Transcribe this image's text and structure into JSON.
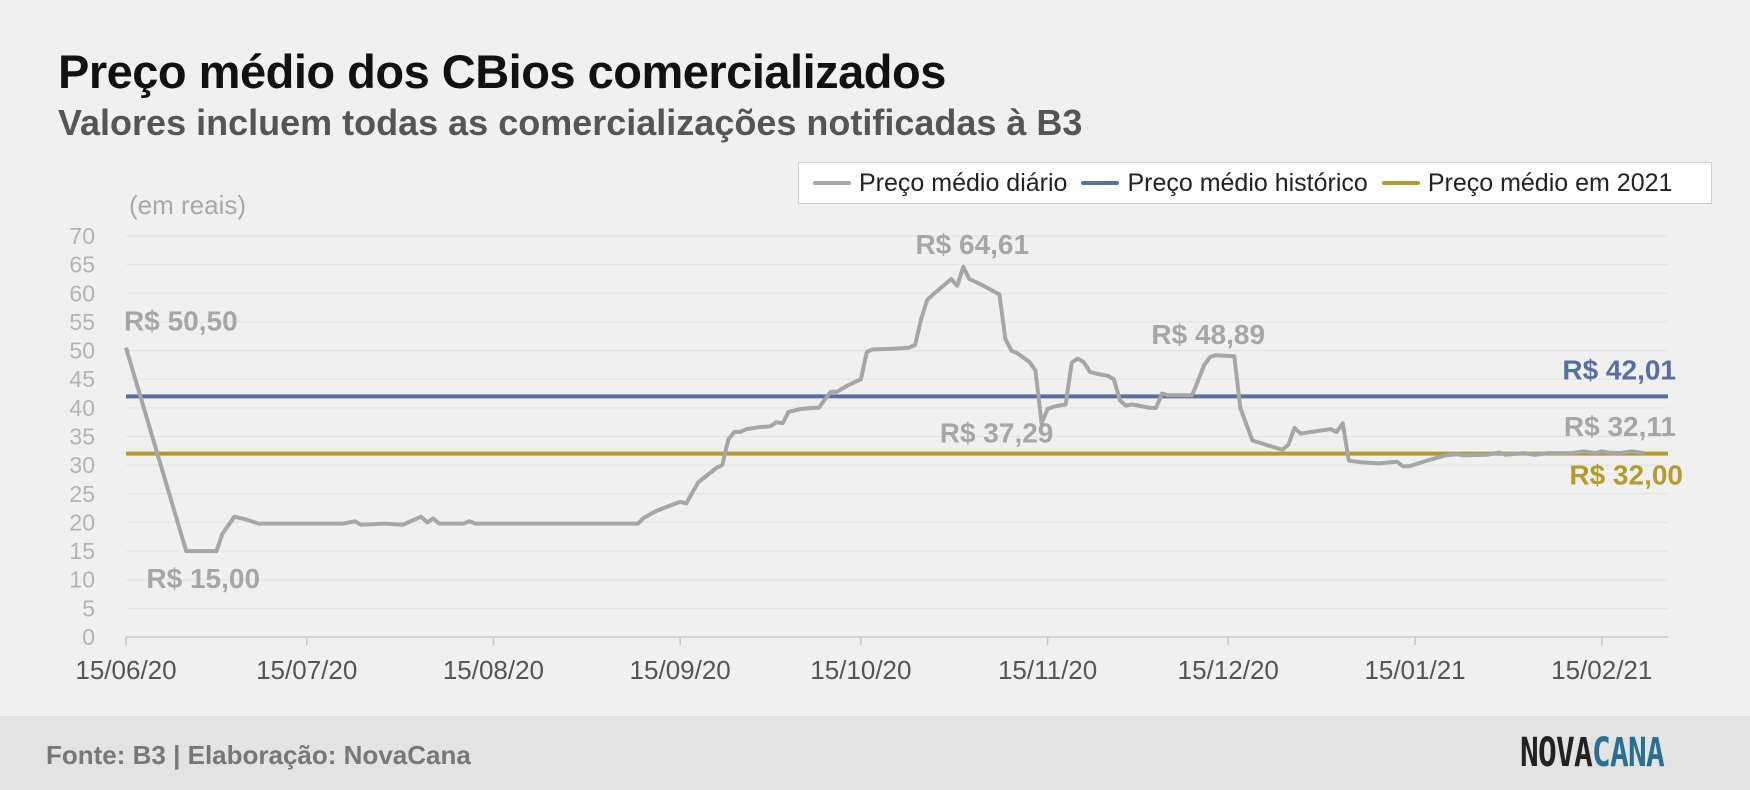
{
  "title": "Preço médio dos CBios comercializados",
  "subtitle": "Valores incluem todas as comercializações notificadas à B3",
  "footer": {
    "source": "Fonte: B3 | Elaboração: NovaCana",
    "logo_part1": "NOVA",
    "logo_part2": "CANA"
  },
  "colors": {
    "daily": "#a6a6a6",
    "historic": "#56709f",
    "year2021": "#b59b2c"
  },
  "chart_data": {
    "type": "line",
    "ylabel": "(em reais)",
    "ylim": [
      0,
      70
    ],
    "yticks": [
      "0",
      "5",
      "10",
      "15",
      "20",
      "25",
      "30",
      "35",
      "40",
      "45",
      "50",
      "55",
      "60",
      "65",
      "70"
    ],
    "xticks": [
      {
        "label": "15/06/20",
        "day": 0
      },
      {
        "label": "15/07/20",
        "day": 30
      },
      {
        "label": "15/08/20",
        "day": 61
      },
      {
        "label": "15/09/20",
        "day": 92
      },
      {
        "label": "15/10/20",
        "day": 122
      },
      {
        "label": "15/11/20",
        "day": 153
      },
      {
        "label": "15/12/20",
        "day": 183
      },
      {
        "label": "15/01/21",
        "day": 214
      },
      {
        "label": "15/02/21",
        "day": 245
      }
    ],
    "x_range": [
      0,
      256
    ],
    "legend": [
      "Preço médio diário",
      "Preço médio histórico",
      "Preço médio em 2021"
    ],
    "series": [
      {
        "name": "Preço médio diário",
        "points": [
          [
            0,
            50.5
          ],
          [
            10,
            15
          ],
          [
            12,
            15
          ],
          [
            15,
            15
          ],
          [
            16,
            18
          ],
          [
            18,
            21
          ],
          [
            20,
            20.5
          ],
          [
            22,
            19.8
          ],
          [
            28,
            19.8
          ],
          [
            36,
            19.8
          ],
          [
            38,
            20.2
          ],
          [
            39,
            19.6
          ],
          [
            43,
            19.8
          ],
          [
            46,
            19.6
          ],
          [
            49,
            21
          ],
          [
            50,
            20
          ],
          [
            51,
            20.7
          ],
          [
            52,
            19.8
          ],
          [
            56,
            19.8
          ],
          [
            57,
            20.2
          ],
          [
            58,
            19.8
          ],
          [
            66,
            19.8
          ],
          [
            80,
            19.8
          ],
          [
            85,
            19.8
          ],
          [
            86,
            20.8
          ],
          [
            88,
            22
          ],
          [
            90,
            22.8
          ],
          [
            92,
            23.6
          ],
          [
            93,
            23.3
          ],
          [
            95,
            27
          ],
          [
            98,
            29.5
          ],
          [
            99,
            30
          ],
          [
            100,
            34.5
          ],
          [
            101,
            35.8
          ],
          [
            102,
            35.8
          ],
          [
            103,
            36.3
          ],
          [
            105,
            36.6
          ],
          [
            107,
            36.8
          ],
          [
            108,
            37.5
          ],
          [
            109,
            37.3
          ],
          [
            110,
            39.3
          ],
          [
            112,
            39.8
          ],
          [
            114,
            40
          ],
          [
            115,
            40
          ],
          [
            117,
            42.8
          ],
          [
            118,
            42.8
          ],
          [
            120,
            44
          ],
          [
            122,
            45
          ],
          [
            123,
            49.8
          ],
          [
            124,
            50.2
          ],
          [
            127,
            50.3
          ],
          [
            130,
            50.5
          ],
          [
            131,
            51
          ],
          [
            132,
            55.5
          ],
          [
            133,
            58.8
          ],
          [
            134,
            59.8
          ],
          [
            135,
            60.7
          ],
          [
            137,
            62.5
          ],
          [
            138,
            61.3
          ],
          [
            139,
            64.61
          ],
          [
            140,
            62.5
          ],
          [
            142,
            61.5
          ],
          [
            145,
            59.8
          ],
          [
            146,
            52
          ],
          [
            147,
            50
          ],
          [
            148,
            49.5
          ],
          [
            150,
            48
          ],
          [
            151,
            46.5
          ],
          [
            152,
            37.29
          ],
          [
            153,
            39.8
          ],
          [
            154,
            40.2
          ],
          [
            156,
            40.6
          ],
          [
            157,
            47.9
          ],
          [
            158,
            48.6
          ],
          [
            159,
            48
          ],
          [
            160,
            46.3
          ],
          [
            161,
            46
          ],
          [
            163,
            45.6
          ],
          [
            164,
            45
          ],
          [
            165,
            41.3
          ],
          [
            166,
            40.4
          ],
          [
            167,
            40.6
          ],
          [
            170,
            40
          ],
          [
            171,
            40
          ],
          [
            172,
            42.5
          ],
          [
            173,
            42.2
          ],
          [
            177,
            42.2
          ],
          [
            178,
            44.8
          ],
          [
            179,
            47.5
          ],
          [
            180,
            48.89
          ],
          [
            181,
            49.2
          ],
          [
            184,
            49
          ],
          [
            185,
            40
          ],
          [
            187,
            34.3
          ],
          [
            190,
            33.3
          ],
          [
            192,
            32.7
          ],
          [
            193,
            33.6
          ],
          [
            194,
            36.5
          ],
          [
            195,
            35.5
          ],
          [
            198,
            36
          ],
          [
            200,
            36.3
          ],
          [
            201,
            35.8
          ],
          [
            202,
            37.3
          ],
          [
            203,
            30.8
          ],
          [
            205,
            30.5
          ],
          [
            208,
            30.3
          ],
          [
            211,
            30.6
          ],
          [
            212,
            29.8
          ],
          [
            213,
            29.8
          ],
          [
            216,
            30.8
          ],
          [
            219,
            31.7
          ],
          [
            221,
            31.9
          ],
          [
            222,
            31.7
          ],
          [
            226,
            31.8
          ],
          [
            228,
            32.2
          ],
          [
            229,
            31.8
          ],
          [
            232,
            32.1
          ],
          [
            234,
            31.8
          ],
          [
            236,
            32.1
          ],
          [
            240,
            32.1
          ],
          [
            242,
            32.4
          ],
          [
            244,
            32.1
          ],
          [
            245,
            32.4
          ],
          [
            246,
            32.2
          ],
          [
            248,
            32.1
          ],
          [
            250,
            32.4
          ],
          [
            252,
            32.11
          ]
        ]
      },
      {
        "name": "Preço médio histórico",
        "value": 42.01
      },
      {
        "name": "Preço médio em 2021",
        "value": 32.0
      }
    ],
    "annotations": [
      {
        "text": "R$ 50,50",
        "x": 0,
        "y": 50.5
      },
      {
        "text": "R$ 15,00",
        "x": 10,
        "y": 15
      },
      {
        "text": "R$ 64,61",
        "x": 139,
        "y": 64.61
      },
      {
        "text": "R$ 37,29",
        "x": 152,
        "y": 37.29
      },
      {
        "text": "R$ 48,89",
        "x": 180,
        "y": 48.89
      },
      {
        "text": "R$ 42,01",
        "x": 256,
        "y": 42.01
      },
      {
        "text": "R$ 32,11",
        "x": 256,
        "y": 32.11
      },
      {
        "text": "R$ 32,00",
        "x": 256,
        "y": 32.0
      }
    ]
  }
}
